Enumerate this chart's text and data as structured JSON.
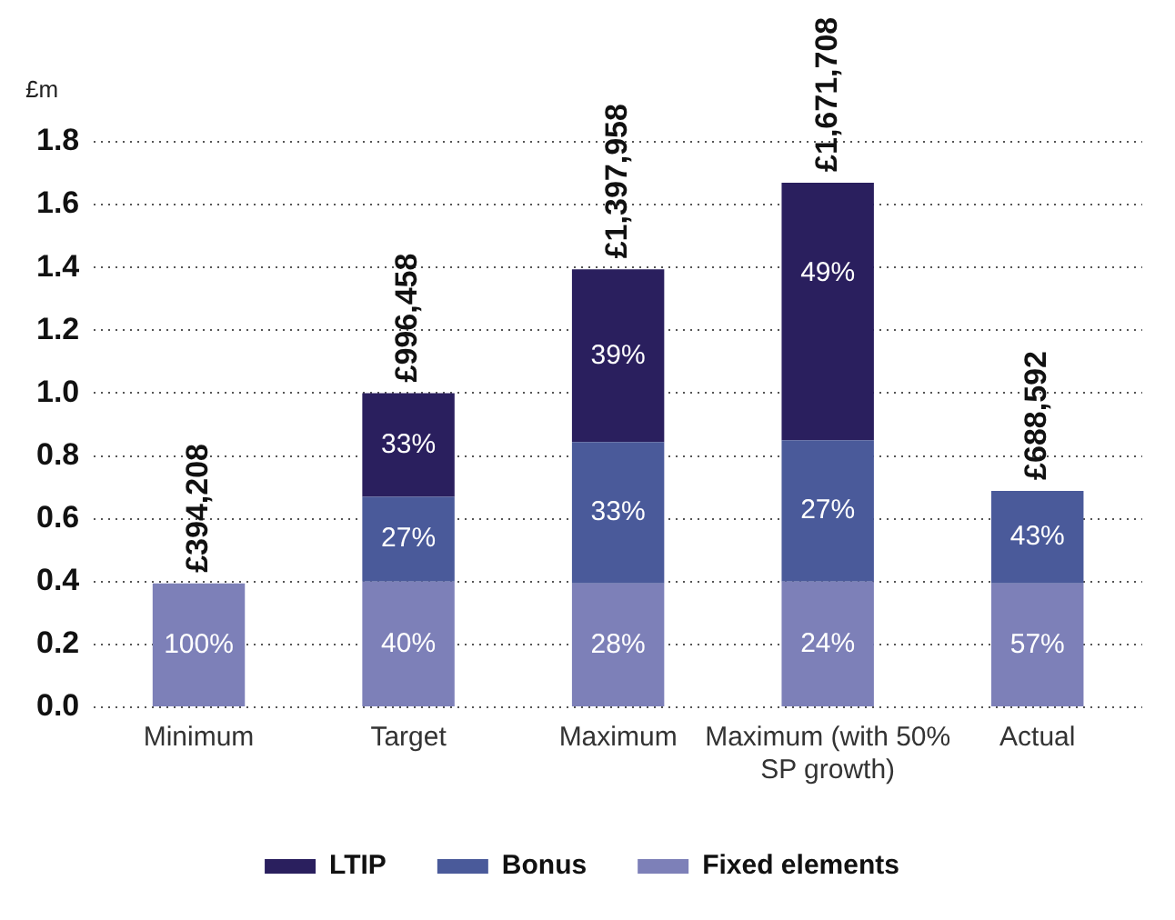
{
  "chart_data": {
    "type": "bar",
    "stacked": true,
    "ylabel": "£m",
    "categories": [
      "Minimum",
      "Target",
      "Maximum",
      "Maximum (with 50% SP growth)",
      "Actual"
    ],
    "series": [
      {
        "name": "Fixed elements",
        "color": "#7d80b8",
        "values": [
          0.394,
          0.4,
          0.394,
          0.4,
          0.394
        ]
      },
      {
        "name": "Bonus",
        "color": "#4a5a9a",
        "values": [
          null,
          0.27,
          0.45,
          0.45,
          0.295
        ]
      },
      {
        "name": "LTIP",
        "color": "#2a1f5e",
        "values": [
          null,
          0.33,
          0.55,
          0.82,
          null
        ]
      }
    ],
    "annotations": [
      {
        "text": "100%",
        "x": "Minimum",
        "y": 0.394
      },
      {
        "text": "40%",
        "x": "Target",
        "y": 0.4
      },
      {
        "text": "27%",
        "x": "Target",
        "y": 0.67
      },
      {
        "text": "33%",
        "x": "Target",
        "y": 1.0
      },
      {
        "text": "28%",
        "x": "Maximum",
        "y": 0.394
      },
      {
        "text": "33%",
        "x": "Maximum",
        "y": 0.844
      },
      {
        "text": "39%",
        "x": "Maximum",
        "y": 1.394
      },
      {
        "text": "24%",
        "x": "Maximum (with 50% SP growth)",
        "y": 0.4
      },
      {
        "text": "27%",
        "x": "Maximum (with 50% SP growth)",
        "y": 0.85
      },
      {
        "text": "49%",
        "x": "Maximum (with 50% SP growth)",
        "y": 1.67
      },
      {
        "text": "57%",
        "x": "Actual",
        "y": 0.394
      },
      {
        "text": "43%",
        "x": "Actual",
        "y": 0.689
      },
      {
        "text": "£394,208",
        "x": "Minimum",
        "y": 0.394
      },
      {
        "text": "£996,458",
        "x": "Target",
        "y": 1.0
      },
      {
        "text": "£1,397,958",
        "x": "Maximum",
        "y": 1.394
      },
      {
        "text": "£1,671,708",
        "x": "Maximum (with 50% SP growth)",
        "y": 1.67
      },
      {
        "text": "£688,592",
        "x": "Actual",
        "y": 0.689
      }
    ],
    "ylim": [
      0,
      1.8
    ],
    "yticks": [
      {
        "value": 0,
        "label": "0.0"
      },
      {
        "value": 0.2,
        "label": "0.2"
      },
      {
        "value": 0.4,
        "label": "0.4"
      },
      {
        "value": 0.6,
        "label": "0.6"
      },
      {
        "value": 0.8,
        "label": "0.8"
      },
      {
        "value": 1,
        "label": "1.0"
      },
      {
        "value": 1.2,
        "label": "1.2"
      },
      {
        "value": 1.4,
        "label": "1.4"
      },
      {
        "value": 1.6,
        "label": "1.6"
      },
      {
        "value": 1.8,
        "label": "1.8"
      }
    ],
    "grid": "y",
    "legend": "bottom"
  }
}
